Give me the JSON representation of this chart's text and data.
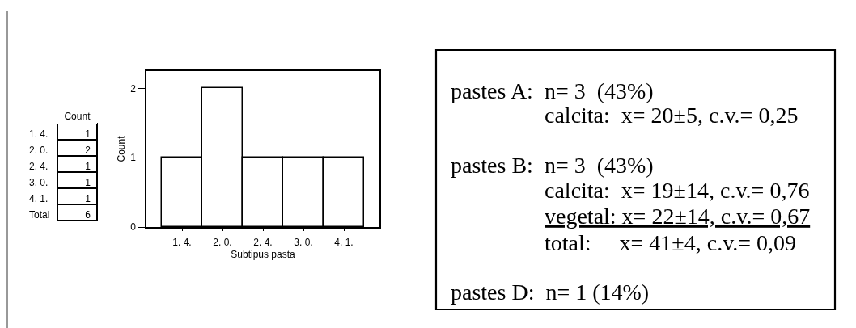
{
  "chart_data": [
    {
      "type": "other",
      "title": "Count",
      "categories": [
        "1. 4.",
        "2. 0.",
        "2. 4.",
        "3. 0.",
        "4. 1.",
        "Total"
      ],
      "values": [
        1,
        2,
        1,
        1,
        1,
        6
      ],
      "data_labels": true
    },
    {
      "type": "bar",
      "categories": [
        "1. 4.",
        "2. 0.",
        "2. 4.",
        "3. 0.",
        "4. 1."
      ],
      "values": [
        1,
        2,
        1,
        1,
        1
      ],
      "color": "#ffffff",
      "xlabel": "Subtipus pasta",
      "ylabel": "Count",
      "ylim": [
        0,
        2.25
      ],
      "yticks": [
        0,
        1,
        2
      ]
    },
    {
      "type": "other",
      "annotations": [
        "pastes A:  n= 3  (43%)",
        "calcita:  x= 20±5, c.v.= 0,25",
        "pastes B:  n= 3  (43%)",
        "calcita:  x= 19±14, c.v.= 0,76",
        "vegetal: x= 22±14, c.v.= 0,67",
        "total:     x= 41±4, c.v.= 0,09",
        "pastes D:  n= 1 (14%)"
      ]
    }
  ]
}
